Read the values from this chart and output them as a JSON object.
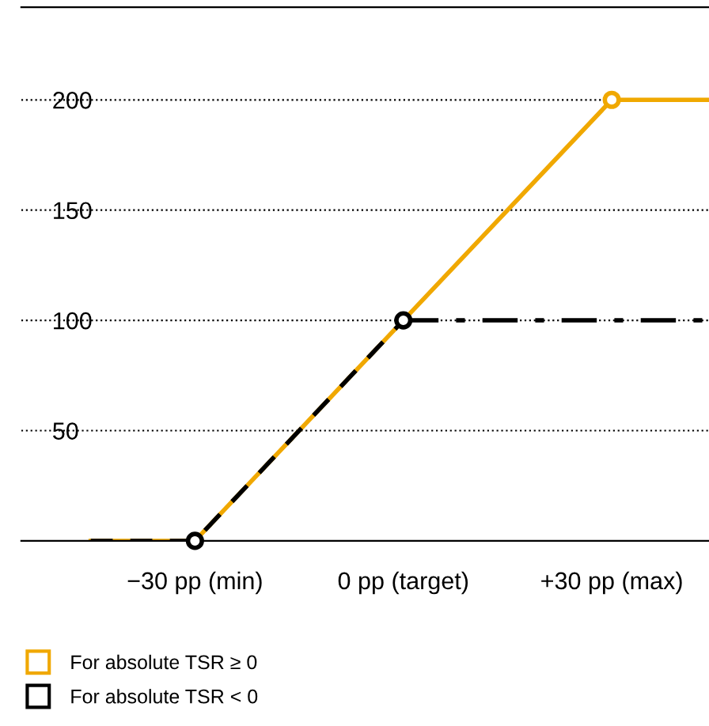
{
  "chart_data": {
    "type": "line",
    "xlim": [
      -55,
      44
    ],
    "ylim": [
      0,
      242
    ],
    "xticks": [
      {
        "value": -30,
        "label": "−30 pp (min)"
      },
      {
        "value": 0,
        "label": "0 pp (target)"
      },
      {
        "value": 30,
        "label": "+30 pp (max)"
      }
    ],
    "yticks": [
      50,
      100,
      150,
      200
    ],
    "grid": "y",
    "legend": "bottom",
    "series": [
      {
        "name": "For absolute TSR ≥ 0",
        "color": "#f0a800",
        "x": [
          -45,
          -30,
          0,
          30,
          44
        ],
        "values": [
          0,
          0,
          100,
          200,
          200
        ],
        "line_style": "solid",
        "marker": "none"
      },
      {
        "name": "For absolute TSR < 0",
        "color": "#000000",
        "x": [
          -45,
          -30,
          0
        ],
        "values": [
          0,
          0,
          100
        ],
        "line_style": "dashed",
        "marker": "none"
      },
      {
        "color": "#000000",
        "x": [
          0,
          44
        ],
        "values": [
          100,
          100
        ],
        "line_style": "dashdot",
        "marker": "none"
      },
      {
        "type": "scatter",
        "color": "#f0a800",
        "x": [
          30
        ],
        "values": [
          200
        ],
        "marker": "circle"
      },
      {
        "type": "scatter",
        "color": "#000000",
        "x": [
          -30,
          0
        ],
        "values": [
          0,
          100
        ],
        "marker": "circle"
      }
    ]
  }
}
